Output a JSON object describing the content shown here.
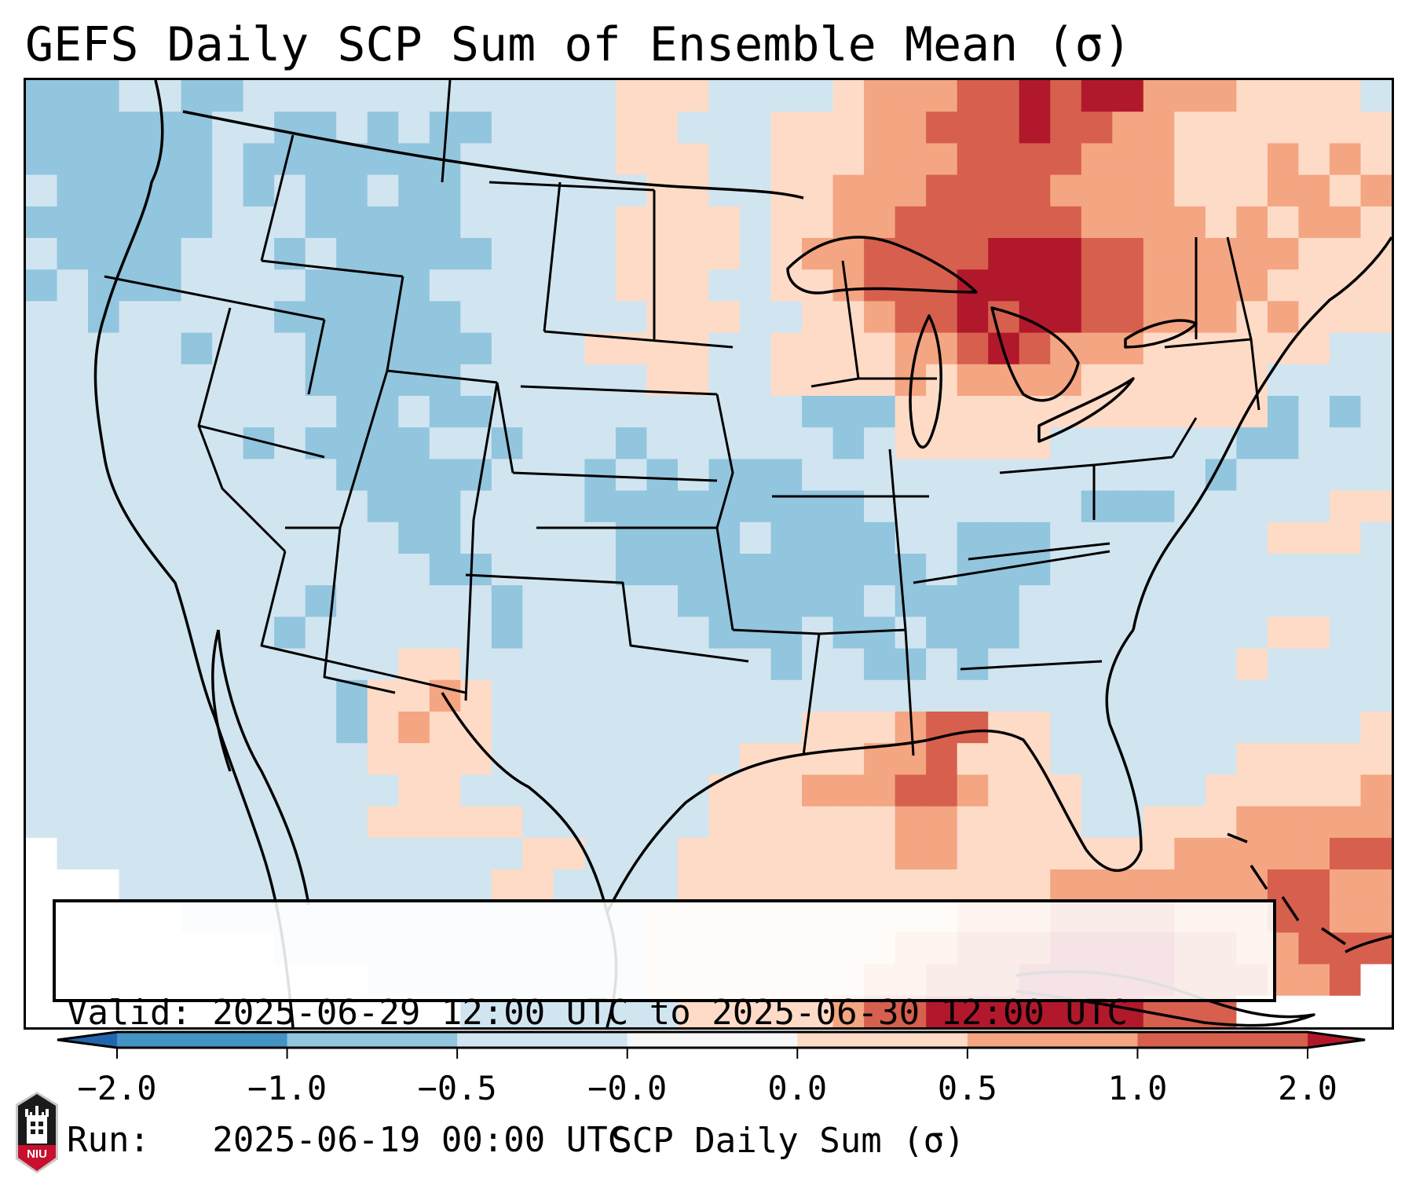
{
  "title": "GEFS Daily SCP Sum of Ensemble Mean (σ)",
  "info": {
    "valid_line": "Valid: 2025-06-29 12:00 UTC to 2025-06-30 12:00 UTC",
    "run_line": "Run:   2025-06-19 00:00 UTC"
  },
  "colorbar": {
    "label": "SCP Daily Sum (σ)",
    "ticks": [
      "−2.0",
      "−1.0",
      "−0.5",
      "−0.0",
      "0.0",
      "0.5",
      "1.0",
      "2.0"
    ],
    "bins": [
      {
        "range": "< -2.0",
        "color": "#2166ac"
      },
      {
        "range": "-2.0 to -1.0",
        "color": "#4393c3"
      },
      {
        "range": "-1.0 to -0.5",
        "color": "#92c5de"
      },
      {
        "range": "-0.5 to -0.0",
        "color": "#d1e5f0"
      },
      {
        "range": "-0.0 to 0.0",
        "color": "#f7f7f7"
      },
      {
        "range": "0.0 to 0.5",
        "color": "#fddbc7"
      },
      {
        "range": "0.5 to 1.0",
        "color": "#f4a582"
      },
      {
        "range": "1.0 to 2.0",
        "color": "#d6604d"
      },
      {
        "range": "> 2.0",
        "color": "#b2182b"
      }
    ],
    "extend": "both"
  },
  "logo": {
    "text": "NIU",
    "name": "Northern Illinois University"
  },
  "chart_data": {
    "type": "heatmap",
    "title": "GEFS Daily SCP Sum of Ensemble Mean (σ)",
    "variable": "SCP Daily Sum (σ)",
    "region": "Contiguous United States",
    "valid": "2025-06-29 12:00 UTC to 2025-06-30 12:00 UTC",
    "run": "2025-06-19 00:00 UTC",
    "legend": "bottom colorbar",
    "levels": [
      -2.0,
      -1.0,
      -0.5,
      -0.0,
      0.0,
      0.5,
      1.0,
      2.0
    ],
    "bin_index_legend": "0:<-2, 1:-2..-1, 2:-1..-0.5, 3:-0.5..0, 4:0, 5:0..0.5, 6:0.5..1, 7:1..2, 8:>2, 9:outside domain",
    "grid": [
      "22233223333333333335553333566677878866655553",
      "22222233223232233335533355566777877665555555",
      "22222232222222333335553355566677776665556565",
      "32222232322322333333553355666777766665556656",
      "22222233322222333335555355667777776666565665",
      "32222333232222233335555356677778887766666555",
      "23222333322223333335553355677788887766665555",
      "33233333222222333333555335567787887766656555",
      "33333233322222233355553355556678766655555533",
      "33333333322222333333553355556566665555553333",
      "33333333332232233333333332225555555555552323",
      "33333332322223323332333333235555533333322333",
      "33333333332222233323232223333333333333233333",
      "33333333333222333322222222233333332223333355",
      "33333333333322333332222322223322233333335553",
      "33333333333332233332222222222322233333333333",
      "33333333323333323333322222232222333333333333",
      "33333333233333323333332223223222333333335533",
      "33333333333355333333333323322323333333353333",
      "33333333332556533333333333333333333333333333",
      "33333333332565533333333335556775533333333335",
      "33333333333555533333333555566755533333355555",
      "33333333333355333333335556667765553333555556",
      "33333333333555553333335555556655553355566666",
      "93333333333333335533355555556655555556666677",
      "99933333333333355333355555555555566666667766",
      "99999333333333333333555555555566677776667766",
      "99999999333333333333555555556677788887766777",
      "99999999999333333333555555566777888887776679",
      "99999999999999333333355555677888888877799999"
    ]
  }
}
